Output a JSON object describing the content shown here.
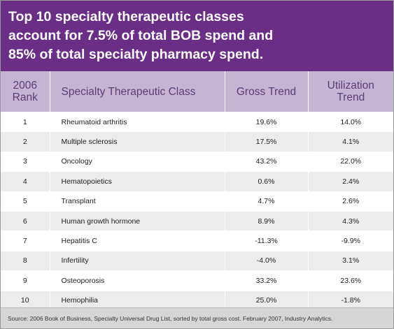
{
  "title": "Top 10 specialty therapeutic classes\naccount for 7.5% of total BOB spend and\n85% of total specialty pharmacy spend.",
  "colors": {
    "title_band": "#6b2d85",
    "header_band": "#c6b5d2",
    "header_text": "#5a3c72",
    "row_alt": "#ececec",
    "source_band": "#d6d6d6"
  },
  "chart_data": {
    "type": "table",
    "columns": [
      "2006\nRank",
      "Specialty Therapeutic Class",
      "Gross Trend",
      "Utilization\nTrend"
    ],
    "rows": [
      [
        "1",
        "Rheumatoid arthritis",
        "19.6%",
        "14.0%"
      ],
      [
        "2",
        "Multiple sclerosis",
        "17.5%",
        "4.1%"
      ],
      [
        "3",
        "Oncology",
        "43.2%",
        "22.0%"
      ],
      [
        "4",
        "Hematopoietics",
        "0.6%",
        "2.4%"
      ],
      [
        "5",
        "Transplant",
        "4.7%",
        "2.6%"
      ],
      [
        "6",
        "Human growth hormone",
        "8.9%",
        "4.3%"
      ],
      [
        "7",
        "Hepatitis C",
        "-11.3%",
        "-9.9%"
      ],
      [
        "8",
        "Infertility",
        "-4.0%",
        "3.1%"
      ],
      [
        "9",
        "Osteoporosis",
        "33.2%",
        "23.6%"
      ],
      [
        "10",
        "Hemophilia",
        "25.0%",
        "-1.8%"
      ]
    ]
  },
  "source": "Source: 2006 Book of Business, Specialty Universal Drug List, sorted by total gross cost. February 2007, Industry Analytics."
}
